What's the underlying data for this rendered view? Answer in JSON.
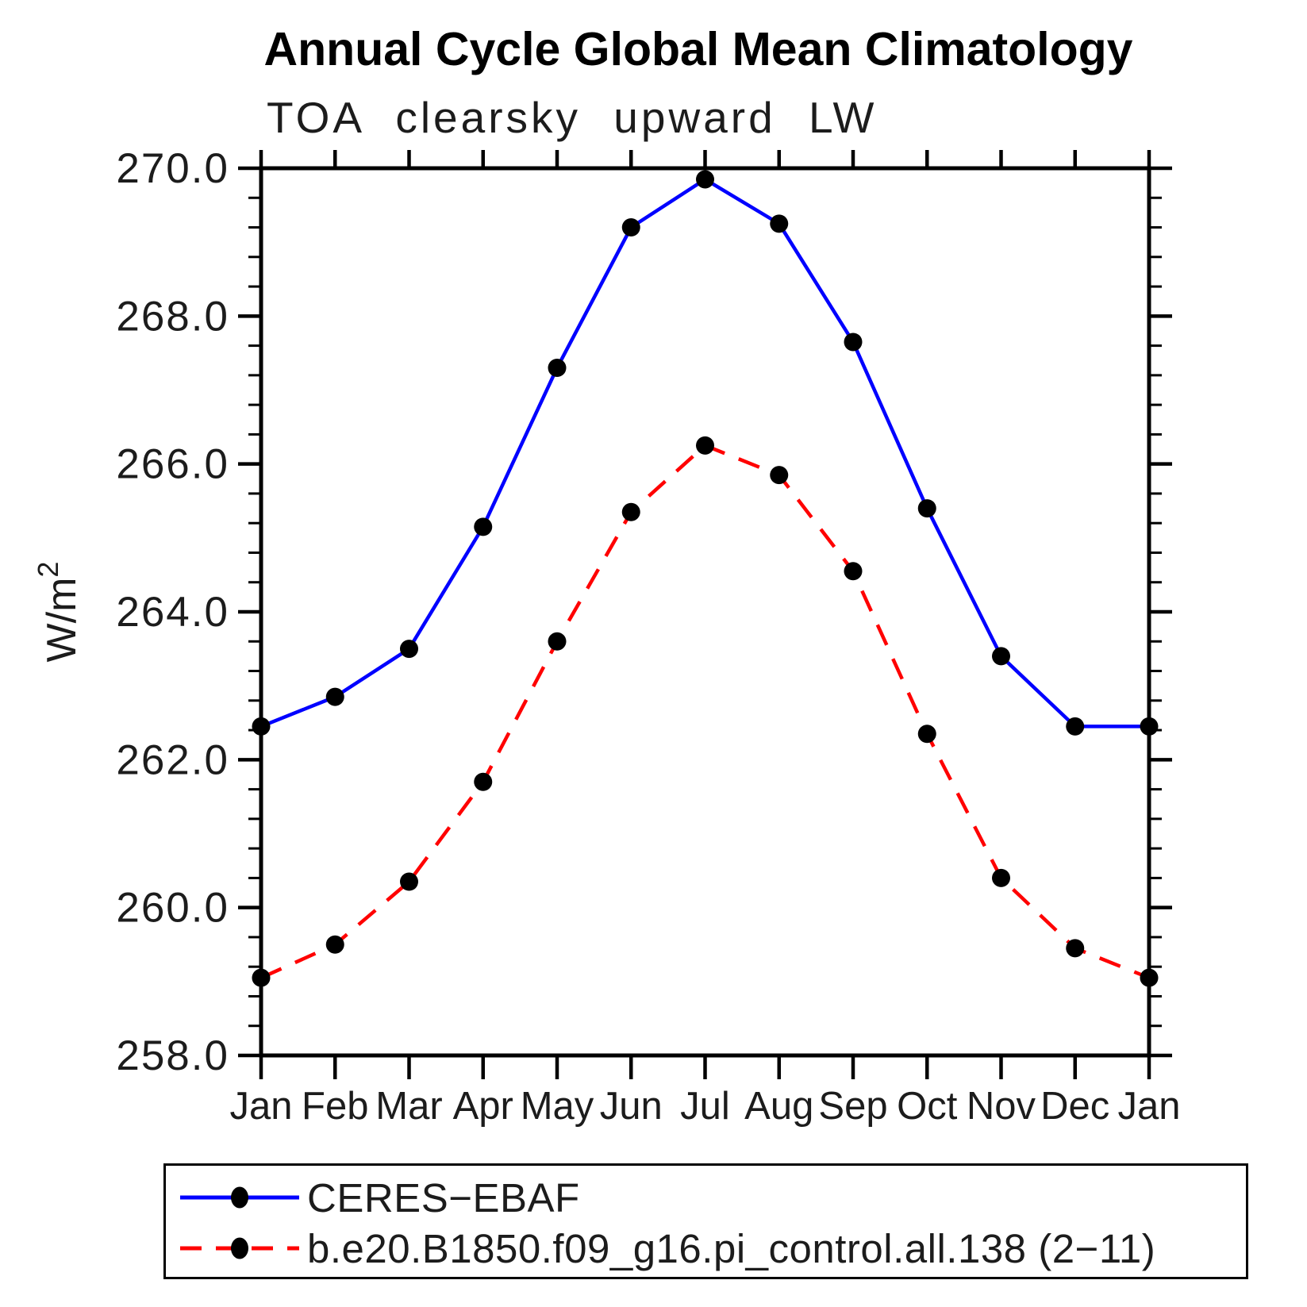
{
  "chart_data": {
    "type": "line",
    "title": "Annual Cycle Global Mean Climatology",
    "subtitle": "TOA clearsky upward LW",
    "ylabel": "W/m²",
    "xlabel": "",
    "categories": [
      "Jan",
      "Feb",
      "Mar",
      "Apr",
      "May",
      "Jun",
      "Jul",
      "Aug",
      "Sep",
      "Oct",
      "Nov",
      "Dec",
      "Jan"
    ],
    "y_axis": {
      "min": 258.0,
      "max": 270.0,
      "major_step": 2.0,
      "minor_step": 0.4,
      "tick_labels": [
        "258.0",
        "260.0",
        "262.0",
        "264.0",
        "266.0",
        "268.0",
        "270.0"
      ]
    },
    "grid": "off",
    "legend_position": "bottom-left-box",
    "frame_color": "#000000",
    "text_color": "#1c1c1c",
    "series": [
      {
        "name": "CERES−EBAF",
        "color": "#0000ff",
        "line_style": "solid",
        "marker": "filled-circle",
        "marker_color": "#000000",
        "values": [
          262.45,
          262.85,
          263.5,
          265.15,
          267.3,
          269.2,
          269.85,
          269.25,
          267.65,
          265.4,
          263.4,
          262.45,
          262.45
        ]
      },
      {
        "name": "b.e20.B1850.f09_g16.pi_control.all.138 (2−11)",
        "color": "#ff0000",
        "line_style": "dashed",
        "marker": "filled-circle",
        "marker_color": "#000000",
        "values": [
          259.05,
          259.5,
          260.35,
          261.7,
          263.6,
          265.35,
          266.25,
          265.85,
          264.55,
          262.35,
          260.4,
          259.45,
          259.05
        ]
      }
    ]
  }
}
